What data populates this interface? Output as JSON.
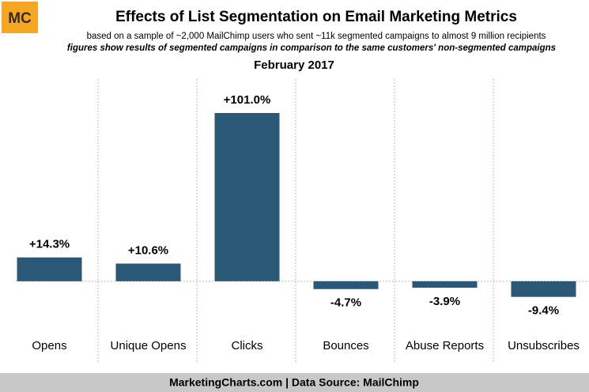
{
  "logo": "MC",
  "footer": "MarketingCharts.com | Data Source: MailChimp",
  "chart_data": {
    "type": "bar",
    "title": "Effects of List Segmentation on Email Marketing Metrics",
    "subtitle": "based on a sample of ~2,000 MailChimp users who sent ~11k segmented campaigns to almost 9 million recipients",
    "note": "figures show results of segmented campaigns in comparison to the same customers' non-segmented campaigns",
    "period": "February 2017",
    "categories": [
      "Opens",
      "Unique Opens",
      "Clicks",
      "Bounces",
      "Abuse Reports",
      "Unsubscribes"
    ],
    "values": [
      14.3,
      10.6,
      101.0,
      -4.7,
      -3.9,
      -9.4
    ],
    "value_labels": [
      "+14.3%",
      "+10.6%",
      "+101.0%",
      "-4.7%",
      "-3.9%",
      "-9.4%"
    ],
    "color": "#2c5878",
    "ylim": [
      -20,
      110
    ]
  }
}
